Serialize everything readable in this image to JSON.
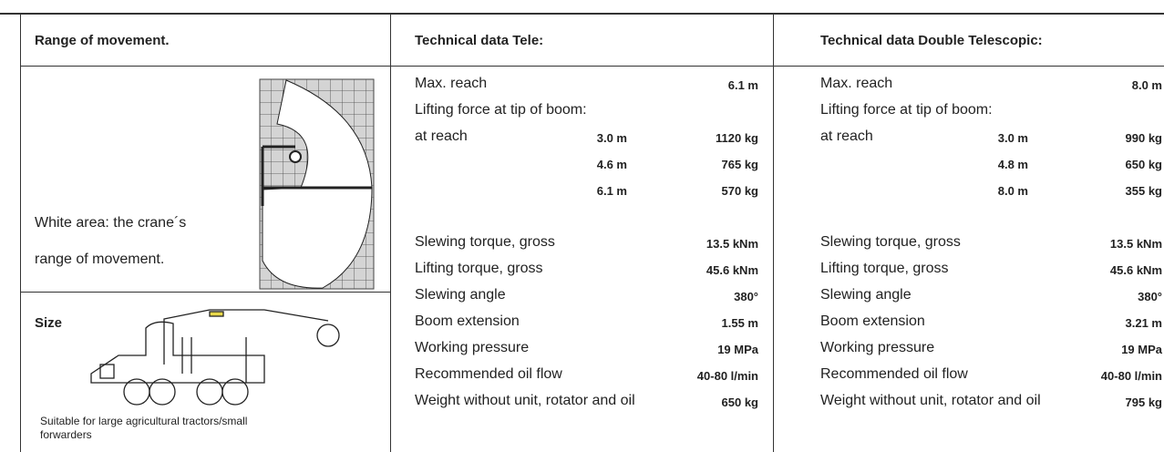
{
  "headers": [
    "Range of movement.",
    "Technical data Tele:",
    "Technical data Double Telescopic:"
  ],
  "range_note": [
    "White area: the crane´s",
    "range of movement."
  ],
  "size": {
    "title": "Size",
    "caption": [
      "Suitable for large agricultural tractors/small",
      "forwarders"
    ]
  },
  "columns": [
    {
      "max_reach_label": "Max. reach",
      "max_reach": "6.1 m",
      "lifting_label": "Lifting force at tip of boom:",
      "at_reach_label": "at reach",
      "lifting": [
        [
          "3.0 m",
          "1120 kg"
        ],
        [
          "4.6 m",
          "765 kg"
        ],
        [
          "6.1 m",
          "570 kg"
        ]
      ],
      "specs": [
        [
          "Slewing torque, gross",
          "13.5 kNm"
        ],
        [
          "Lifting torque, gross",
          "45.6 kNm"
        ],
        [
          "Slewing angle",
          "380°"
        ],
        [
          "Boom extension",
          "1.55 m"
        ],
        [
          "Working pressure",
          "19 MPa"
        ],
        [
          "Recommended oil flow",
          "40-80 l/min"
        ],
        [
          "Weight without unit, rotator and oil",
          "650 kg"
        ]
      ]
    },
    {
      "max_reach_label": "Max. reach",
      "max_reach": "8.0 m",
      "lifting_label": "Lifting force at tip of boom:",
      "at_reach_label": "at reach",
      "lifting": [
        [
          "3.0 m",
          "990 kg"
        ],
        [
          "4.8 m",
          "650 kg"
        ],
        [
          "8.0 m",
          "355 kg"
        ]
      ],
      "specs": [
        [
          "Slewing torque, gross",
          "13.5 kNm"
        ],
        [
          "Lifting torque, gross",
          "45.6 kNm"
        ],
        [
          "Slewing angle",
          "380°"
        ],
        [
          "Boom extension",
          "3.21 m"
        ],
        [
          "Working pressure",
          "19 MPa"
        ],
        [
          "Recommended oil flow",
          "40-80 l/min"
        ],
        [
          "Weight without unit, rotator and oil",
          "795 kg"
        ]
      ]
    }
  ]
}
